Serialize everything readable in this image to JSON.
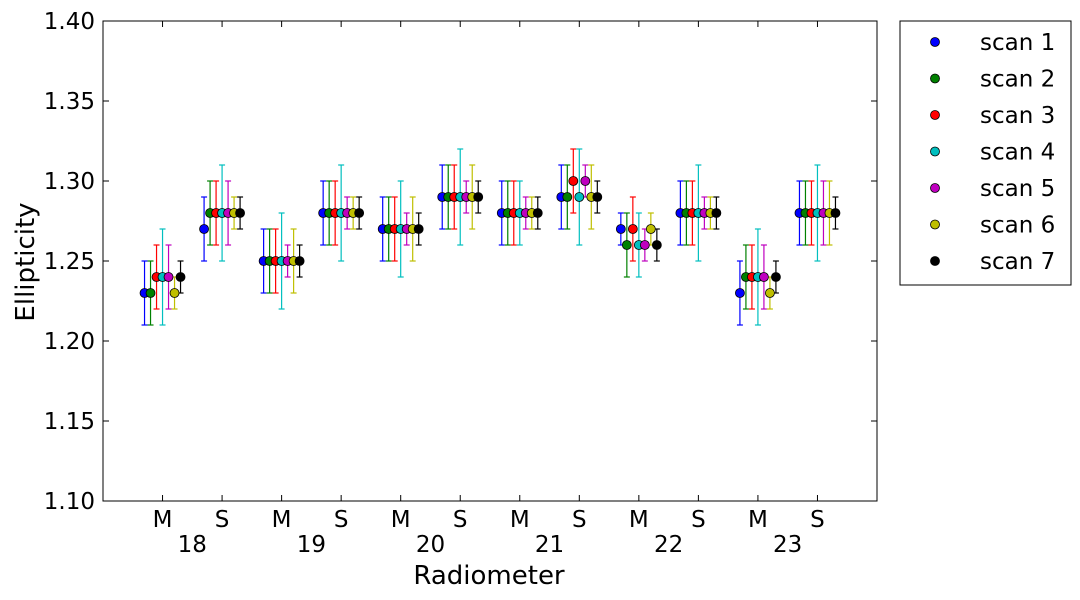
{
  "chart_data": {
    "type": "scatter",
    "title": "",
    "xlabel": "Radiometer",
    "ylabel": "Ellipticity",
    "ylim": [
      1.1,
      1.4
    ],
    "yticks": [
      "1.10",
      "1.15",
      "1.20",
      "1.25",
      "1.30",
      "1.35",
      "1.40"
    ],
    "grid": false,
    "legend_position": "outside-right",
    "categories": [
      {
        "sub": "M",
        "group": "18"
      },
      {
        "sub": "S",
        "group": ""
      },
      {
        "sub": "M",
        "group": "19"
      },
      {
        "sub": "S",
        "group": ""
      },
      {
        "sub": "M",
        "group": "20"
      },
      {
        "sub": "S",
        "group": ""
      },
      {
        "sub": "M",
        "group": "21"
      },
      {
        "sub": "S",
        "group": ""
      },
      {
        "sub": "M",
        "group": "22"
      },
      {
        "sub": "S",
        "group": ""
      },
      {
        "sub": "M",
        "group": "23"
      },
      {
        "sub": "S",
        "group": ""
      }
    ],
    "series": [
      {
        "name": "scan 1",
        "color": "#0000ff",
        "values": [
          1.23,
          1.27,
          1.25,
          1.28,
          1.27,
          1.29,
          1.28,
          1.29,
          1.27,
          1.28,
          1.23,
          1.28
        ],
        "errors": [
          0.02,
          0.02,
          0.02,
          0.02,
          0.02,
          0.02,
          0.02,
          0.02,
          0.01,
          0.02,
          0.02,
          0.02
        ]
      },
      {
        "name": "scan 2",
        "color": "#008000",
        "values": [
          1.23,
          1.28,
          1.25,
          1.28,
          1.27,
          1.29,
          1.28,
          1.29,
          1.26,
          1.28,
          1.24,
          1.28
        ],
        "errors": [
          0.02,
          0.02,
          0.02,
          0.02,
          0.02,
          0.02,
          0.02,
          0.02,
          0.02,
          0.02,
          0.02,
          0.02
        ]
      },
      {
        "name": "scan 3",
        "color": "#ff0000",
        "values": [
          1.24,
          1.28,
          1.25,
          1.28,
          1.27,
          1.29,
          1.28,
          1.3,
          1.27,
          1.28,
          1.24,
          1.28
        ],
        "errors": [
          0.02,
          0.02,
          0.02,
          0.02,
          0.02,
          0.02,
          0.02,
          0.02,
          0.02,
          0.02,
          0.02,
          0.02
        ]
      },
      {
        "name": "scan 4",
        "color": "#00bfbf",
        "values": [
          1.24,
          1.28,
          1.25,
          1.28,
          1.27,
          1.29,
          1.28,
          1.29,
          1.26,
          1.28,
          1.24,
          1.28
        ],
        "errors": [
          0.03,
          0.03,
          0.03,
          0.03,
          0.03,
          0.03,
          0.02,
          0.03,
          0.02,
          0.03,
          0.03,
          0.03
        ]
      },
      {
        "name": "scan 5",
        "color": "#bf00bf",
        "values": [
          1.24,
          1.28,
          1.25,
          1.28,
          1.27,
          1.29,
          1.28,
          1.3,
          1.26,
          1.28,
          1.24,
          1.28
        ],
        "errors": [
          0.02,
          0.02,
          0.01,
          0.01,
          0.01,
          0.01,
          0.01,
          0.01,
          0.01,
          0.01,
          0.02,
          0.02
        ]
      },
      {
        "name": "scan 6",
        "color": "#bfbf00",
        "values": [
          1.23,
          1.28,
          1.25,
          1.28,
          1.27,
          1.29,
          1.28,
          1.29,
          1.27,
          1.28,
          1.23,
          1.28
        ],
        "errors": [
          0.01,
          0.01,
          0.02,
          0.01,
          0.02,
          0.02,
          0.01,
          0.02,
          0.01,
          0.01,
          0.01,
          0.02
        ]
      },
      {
        "name": "scan 7",
        "color": "#000000",
        "values": [
          1.24,
          1.28,
          1.25,
          1.28,
          1.27,
          1.29,
          1.28,
          1.29,
          1.26,
          1.28,
          1.24,
          1.28
        ],
        "errors": [
          0.01,
          0.01,
          0.01,
          0.01,
          0.01,
          0.01,
          0.01,
          0.01,
          0.01,
          0.01,
          0.01,
          0.01
        ]
      }
    ]
  }
}
